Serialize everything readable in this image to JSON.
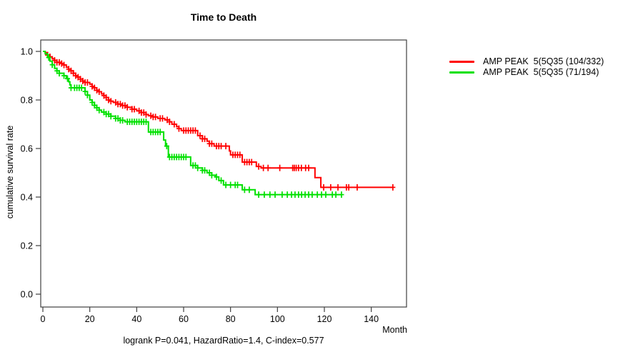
{
  "chart_data": {
    "type": "line",
    "subtype": "kaplan-meier-step",
    "title": "Time to Death",
    "xlabel": "Month",
    "ylabel": "cumulative survival rate",
    "annotation": "logrank P=0.041, HazardRatio=1.4, C-index=0.577",
    "xlim": [
      0,
      155
    ],
    "ylim": [
      0.0,
      1.0
    ],
    "x_ticks": [
      0,
      20,
      40,
      60,
      80,
      100,
      120,
      140
    ],
    "y_ticks": [
      0.0,
      0.2,
      0.4,
      0.6,
      0.8,
      1.0
    ],
    "grid": false,
    "legend_position": "right-outside",
    "axis_color": "#404040",
    "series": [
      {
        "name": "AMP PEAK  5(5Q35 (104/332)",
        "color": "#ff0000",
        "start": [
          0,
          1.0
        ],
        "end_month": 149.5,
        "steps": [
          [
            1,
            0.995
          ],
          [
            2,
            0.985
          ],
          [
            3,
            0.978
          ],
          [
            4,
            0.97
          ],
          [
            5,
            0.963
          ],
          [
            6,
            0.955
          ],
          [
            8,
            0.95
          ],
          [
            9,
            0.944
          ],
          [
            10,
            0.935
          ],
          [
            11,
            0.927
          ],
          [
            12,
            0.92
          ],
          [
            13,
            0.91
          ],
          [
            14,
            0.9
          ],
          [
            15,
            0.894
          ],
          [
            16,
            0.886
          ],
          [
            17,
            0.878
          ],
          [
            18,
            0.872
          ],
          [
            20,
            0.865
          ],
          [
            21,
            0.856
          ],
          [
            22,
            0.85
          ],
          [
            23,
            0.84
          ],
          [
            24,
            0.834
          ],
          [
            25,
            0.825
          ],
          [
            26,
            0.818
          ],
          [
            27,
            0.81
          ],
          [
            28,
            0.8
          ],
          [
            29,
            0.795
          ],
          [
            30,
            0.79
          ],
          [
            32,
            0.783
          ],
          [
            34,
            0.777
          ],
          [
            36,
            0.77
          ],
          [
            38,
            0.762
          ],
          [
            40,
            0.755
          ],
          [
            42,
            0.748
          ],
          [
            44,
            0.74
          ],
          [
            45,
            0.735
          ],
          [
            47,
            0.73
          ],
          [
            49,
            0.724
          ],
          [
            52,
            0.718
          ],
          [
            54,
            0.71
          ],
          [
            55,
            0.7
          ],
          [
            57,
            0.69
          ],
          [
            58,
            0.682
          ],
          [
            59,
            0.674
          ],
          [
            66,
            0.653
          ],
          [
            68,
            0.64
          ],
          [
            70,
            0.63
          ],
          [
            71,
            0.62
          ],
          [
            73,
            0.61
          ],
          [
            79.5,
            0.59
          ],
          [
            80,
            0.574
          ],
          [
            85,
            0.544
          ],
          [
            91,
            0.526
          ],
          [
            93,
            0.52
          ],
          [
            116,
            0.48
          ],
          [
            118.5,
            0.44
          ]
        ],
        "censor_months": [
          2,
          3,
          5,
          6,
          7,
          8,
          9,
          11,
          12,
          13,
          14,
          15,
          16,
          17,
          18,
          19,
          21,
          22,
          23,
          24,
          26,
          27,
          28,
          29,
          31,
          32,
          33,
          34,
          35,
          36,
          38,
          39,
          41,
          42,
          43,
          44,
          46,
          47,
          48,
          50,
          51,
          53,
          54,
          56,
          58,
          60,
          61,
          62,
          63,
          64,
          65,
          67,
          68,
          69,
          71,
          72,
          74,
          75,
          76,
          78,
          81,
          82,
          83,
          84,
          86,
          87,
          88,
          89,
          92,
          94,
          96,
          101,
          106.5,
          107.2,
          108,
          109,
          110.2,
          112,
          113.3,
          119.7,
          122.7,
          125.8,
          129.4,
          130.4,
          134,
          149.2
        ]
      },
      {
        "name": "AMP PEAK  5(5Q35 (71/194)",
        "color": "#00e000",
        "start": [
          0,
          1.0
        ],
        "end_month": 127.3,
        "steps": [
          [
            1,
            0.99
          ],
          [
            2,
            0.975
          ],
          [
            3,
            0.96
          ],
          [
            4,
            0.945
          ],
          [
            5,
            0.93
          ],
          [
            6,
            0.92
          ],
          [
            7,
            0.91
          ],
          [
            9,
            0.9
          ],
          [
            10,
            0.888
          ],
          [
            11,
            0.875
          ],
          [
            11.5,
            0.862
          ],
          [
            12,
            0.85
          ],
          [
            18,
            0.835
          ],
          [
            19,
            0.82
          ],
          [
            20,
            0.8
          ],
          [
            21,
            0.79
          ],
          [
            22,
            0.778
          ],
          [
            23,
            0.768
          ],
          [
            24,
            0.758
          ],
          [
            25,
            0.75
          ],
          [
            27,
            0.742
          ],
          [
            29,
            0.733
          ],
          [
            31,
            0.724
          ],
          [
            33,
            0.716
          ],
          [
            35,
            0.71
          ],
          [
            45,
            0.668
          ],
          [
            51.5,
            0.635
          ],
          [
            52.3,
            0.61
          ],
          [
            53.5,
            0.565
          ],
          [
            63,
            0.53
          ],
          [
            66,
            0.52
          ],
          [
            68,
            0.51
          ],
          [
            70,
            0.5
          ],
          [
            72,
            0.49
          ],
          [
            73.5,
            0.483
          ],
          [
            75,
            0.468
          ],
          [
            77,
            0.45
          ],
          [
            85,
            0.43
          ],
          [
            90.5,
            0.41
          ]
        ],
        "censor_months": [
          2.5,
          4,
          6,
          7,
          9,
          10.5,
          12,
          13.5,
          14.5,
          15.5,
          16.5,
          18,
          19,
          21,
          22,
          23,
          24,
          26,
          27,
          28,
          29,
          31,
          32,
          33,
          34,
          36,
          37,
          38,
          39,
          40,
          41,
          42,
          43,
          44,
          46,
          47,
          48,
          49,
          50,
          52.8,
          54,
          55,
          56,
          57,
          58,
          59,
          60,
          61,
          64,
          65,
          66,
          68,
          69,
          71,
          72,
          74,
          76,
          78,
          80,
          82,
          83,
          86,
          88,
          92,
          94.4,
          96.8,
          99,
          102,
          104.2,
          106,
          107.5,
          109,
          110.3,
          111.8,
          113.3,
          114.8,
          117,
          118.8,
          120.6,
          123.4,
          124.9,
          127.3
        ]
      }
    ]
  }
}
